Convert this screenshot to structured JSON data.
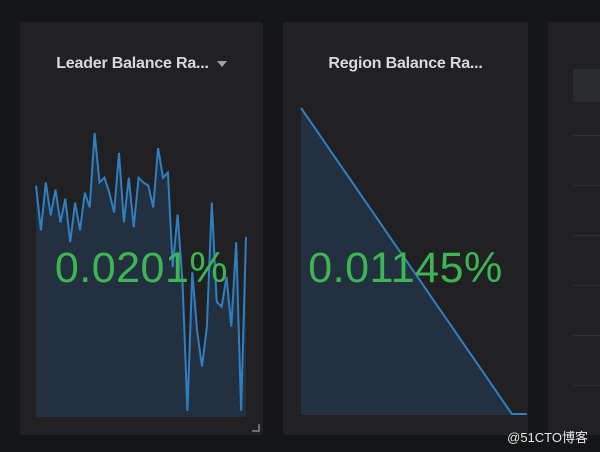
{
  "panels": [
    {
      "title": "Leader Balance Ra...",
      "value": "0.0201%",
      "has_menu": true,
      "sparkline": [
        81.4,
        65.6,
        82.5,
        70.9,
        80,
        68.4,
        76.8,
        61.4,
        75.4,
        65.6,
        78.9,
        73.7,
        100,
        82.5,
        84.2,
        78.9,
        71.9,
        93,
        68.4,
        84.2,
        66.7,
        84.2,
        82.5,
        81.4,
        73.7,
        94.7,
        84.2,
        86,
        52.6,
        71.2,
        47.4,
        1.8,
        50.9,
        29.8,
        17.5,
        31.6,
        75.4,
        40.4,
        38.6,
        49.1,
        31.6,
        61.4,
        1.8,
        63.2
      ]
    },
    {
      "title": "Region Balance Ra...",
      "value": "0.01145%",
      "has_menu": false,
      "sparkline": [
        100,
        92.9,
        85.7,
        78.6,
        71.4,
        64.3,
        57.1,
        50,
        42.9,
        35.7,
        28.6,
        21.4,
        14.3,
        7.1,
        0,
        0
      ]
    }
  ],
  "colors": {
    "value": "#3cb553",
    "line": "#2f7fc1",
    "fill": "#23303f",
    "panel": "#212124",
    "background": "#151618"
  },
  "watermark": "@51CTO博客"
}
